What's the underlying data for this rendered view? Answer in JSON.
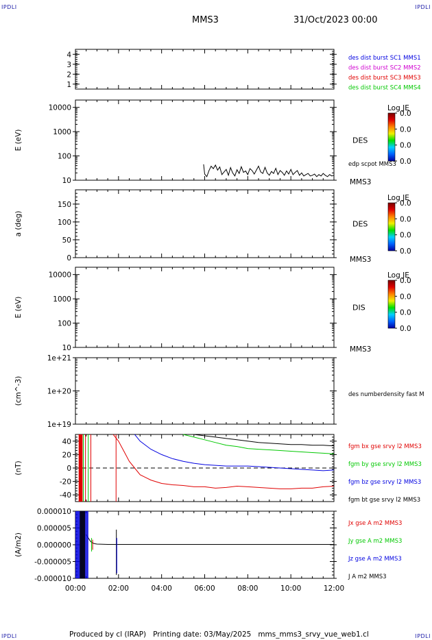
{
  "header": {
    "corner_label": "IPDLI",
    "spacecraft": "MMS3",
    "datetime": "31/Oct/2023 00:00"
  },
  "footer": {
    "producer": "Produced by cl (IRAP)",
    "printing": "Printing date: 03/May/2025",
    "product": "mms_mms3_srvy_vue_web1.cl"
  },
  "colors": {
    "black": "#000000",
    "red": "#e00000",
    "green": "#00c800",
    "blue": "#0000e0",
    "magenta": "#d000d0",
    "label_blue": "#1c1ca8"
  },
  "chart_data": [
    {
      "type": "line",
      "id": "burst",
      "ylim": [
        0.5,
        4.5
      ],
      "yticks": [
        {
          "v": 1,
          "label": "1"
        },
        {
          "v": 2,
          "label": "2"
        },
        {
          "v": 3,
          "label": "3"
        },
        {
          "v": 4,
          "label": "4"
        }
      ],
      "legend": [
        {
          "text": "des dist burst SC1 MMS1",
          "color": "#0000e0"
        },
        {
          "text": "des dist burst SC2 MMS2",
          "color": "#d000d0"
        },
        {
          "text": "des dist burst SC3 MMS3",
          "color": "#e00000"
        },
        {
          "text": "des dist burst SC4 MMS4",
          "color": "#00c800"
        }
      ],
      "series": []
    },
    {
      "type": "heatmap",
      "id": "des_energy",
      "ylabel": "E (eV)",
      "yscale": "log",
      "ylim": [
        10,
        20000
      ],
      "yticks": [
        {
          "v": 10,
          "label": "10"
        },
        {
          "v": 100,
          "label": "100"
        },
        {
          "v": 1000,
          "label": "1000"
        },
        {
          "v": 10000,
          "label": "10000"
        }
      ],
      "instrument": "DES",
      "spacecraft": "MMS3",
      "colorbar": {
        "title": "Log JE",
        "ticks": [
          "0.0",
          "0.0",
          "0.0",
          "0.0"
        ]
      },
      "legend": [
        {
          "text": "edp scpot MMS3",
          "color": "#000000"
        }
      ],
      "series": [
        {
          "name": "edp scpot MMS3",
          "color": "#000000",
          "x": [
            5.95,
            6.0,
            6.1,
            6.2,
            6.3,
            6.4,
            6.5,
            6.6,
            6.7,
            6.8,
            6.9,
            7.0,
            7.1,
            7.2,
            7.3,
            7.4,
            7.5,
            7.6,
            7.7,
            7.8,
            7.9,
            8.0,
            8.1,
            8.2,
            8.3,
            8.4,
            8.5,
            8.6,
            8.7,
            8.8,
            8.9,
            9.0,
            9.1,
            9.2,
            9.3,
            9.4,
            9.5,
            9.6,
            9.7,
            9.8,
            9.9,
            10.0,
            10.1,
            10.2,
            10.3,
            10.4,
            10.5,
            10.6,
            10.7,
            10.8,
            10.9,
            11.0,
            11.1,
            11.2,
            11.3,
            11.4,
            11.5,
            11.6,
            11.7,
            11.8,
            11.9,
            12.0
          ],
          "y": [
            45,
            18,
            14,
            25,
            38,
            30,
            42,
            26,
            35,
            17,
            22,
            28,
            16,
            33,
            20,
            15,
            27,
            19,
            36,
            21,
            24,
            17,
            30,
            25,
            18,
            26,
            38,
            22,
            19,
            34,
            20,
            16,
            23,
            19,
            31,
            17,
            25,
            21,
            16,
            24,
            18,
            28,
            17,
            21,
            25,
            16,
            20,
            15,
            17,
            19,
            15,
            16,
            18,
            14,
            17,
            15,
            19,
            16,
            14,
            17,
            15,
            16
          ]
        }
      ]
    },
    {
      "type": "heatmap",
      "id": "des_pitch",
      "ylabel": "a (deg)",
      "ylim": [
        0,
        190
      ],
      "yticks": [
        {
          "v": 0,
          "label": "0"
        },
        {
          "v": 50,
          "label": "50"
        },
        {
          "v": 100,
          "label": "100"
        },
        {
          "v": 150,
          "label": "150"
        }
      ],
      "instrument": "DES",
      "spacecraft": "MMS3",
      "colorbar": {
        "title": "Log JE",
        "ticks": [
          "0.0",
          "0.0",
          "0.0",
          "0.0"
        ]
      },
      "series": []
    },
    {
      "type": "heatmap",
      "id": "dis_energy",
      "ylabel": "E (eV)",
      "yscale": "log",
      "ylim": [
        10,
        20000
      ],
      "yticks": [
        {
          "v": 10,
          "label": "10"
        },
        {
          "v": 100,
          "label": "100"
        },
        {
          "v": 1000,
          "label": "1000"
        },
        {
          "v": 10000,
          "label": "10000"
        }
      ],
      "instrument": "DIS",
      "spacecraft": "MMS3",
      "colorbar": {
        "title": "Log JE",
        "ticks": [
          "0.0",
          "0.0",
          "0.0",
          "0.0"
        ]
      },
      "series": []
    },
    {
      "type": "line",
      "id": "density",
      "ylabel": "(cm^-3)",
      "yscale": "log",
      "ylim": [
        1e+19,
        1e+21
      ],
      "yticks": [
        {
          "v": 1e+19,
          "label": "1e+19"
        },
        {
          "v": 1e+20,
          "label": "1e+20"
        },
        {
          "v": 1e+21,
          "label": "1e+21"
        }
      ],
      "legend": [
        {
          "text": "des numberdensity fast M",
          "color": "#000000"
        }
      ],
      "series": []
    },
    {
      "type": "line",
      "id": "fgm",
      "ylabel": "(nT)",
      "ylim": [
        -50,
        50
      ],
      "yticks": [
        {
          "v": -40,
          "label": "-40"
        },
        {
          "v": -20,
          "label": "-20"
        },
        {
          "v": 0,
          "label": "0"
        },
        {
          "v": 20,
          "label": "20"
        },
        {
          "v": 40,
          "label": "40"
        }
      ],
      "zero_line": true,
      "legend": [
        {
          "text": "fgm bx gse srvy l2 MMS3",
          "color": "#e00000"
        },
        {
          "text": "fgm by gse srvy l2 MMS3",
          "color": "#00c800"
        },
        {
          "text": "fgm bz gse srvy l2 MMS3",
          "color": "#0000e0"
        },
        {
          "text": "fgm bt gse srvy l2 MMS3",
          "color": "#000000"
        }
      ],
      "series": [
        {
          "name": "fgm bx gse srvy l2 MMS3",
          "color": "#e00000",
          "x": [
            1.75,
            2.0,
            2.25,
            2.5,
            2.75,
            3.0,
            3.25,
            3.5,
            4.0,
            4.5,
            5.0,
            5.5,
            6.0,
            6.5,
            7.0,
            7.5,
            8.0,
            8.5,
            9.0,
            9.5,
            10.0,
            10.5,
            11.0,
            11.5,
            12.0
          ],
          "y": [
            55,
            40,
            25,
            10,
            0,
            -10,
            -14,
            -18,
            -23,
            -25,
            -26,
            -28,
            -28,
            -30,
            -29,
            -27,
            -28,
            -29,
            -30,
            -31,
            -31,
            -30,
            -30,
            -28,
            -27
          ]
        },
        {
          "name": "fgm by gse srvy l2 MMS3",
          "color": "#00c800",
          "x": [
            5.0,
            5.5,
            6.0,
            6.5,
            7.0,
            7.5,
            8.0,
            8.5,
            9.0,
            9.5,
            10.0,
            10.5,
            11.0,
            11.5,
            12.0
          ],
          "y": [
            50,
            46,
            42,
            38,
            34,
            32,
            29,
            28,
            27,
            26,
            25,
            24,
            23,
            22,
            21
          ]
        },
        {
          "name": "fgm bz gse srvy l2 MMS3",
          "color": "#0000e0",
          "x": [
            2.75,
            3.0,
            3.5,
            4.0,
            4.5,
            5.0,
            5.5,
            6.0,
            6.5,
            7.0,
            7.5,
            8.0,
            8.5,
            9.0,
            9.5,
            10.0,
            10.5,
            11.0,
            11.5,
            12.0
          ],
          "y": [
            50,
            40,
            28,
            20,
            14,
            10,
            7,
            5,
            4,
            3,
            3,
            3,
            2,
            1,
            0,
            -1,
            -2,
            -3,
            -4,
            -3
          ]
        },
        {
          "name": "fgm bt gse srvy l2 MMS3",
          "color": "#000000",
          "x": [
            5.5,
            6.0,
            6.5,
            7.0,
            7.5,
            8.0,
            8.5,
            9.0,
            9.5,
            10.0,
            10.5,
            11.0,
            11.5,
            12.0
          ],
          "y": [
            50,
            48,
            46,
            44,
            42,
            40,
            38,
            37,
            36,
            35,
            35,
            34,
            34,
            33
          ]
        }
      ]
    },
    {
      "type": "line",
      "id": "current",
      "ylabel": "(A/m2)",
      "ylim": [
        -1e-05,
        1e-05
      ],
      "yticks": [
        {
          "v": -1e-05,
          "label": "-0.000010"
        },
        {
          "v": -5e-06,
          "label": "-0.000005"
        },
        {
          "v": 0,
          "label": "0.000000"
        },
        {
          "v": 5e-06,
          "label": "0.000005"
        },
        {
          "v": 1e-05,
          "label": "0.000010"
        }
      ],
      "legend": [
        {
          "text": "Jx gse A m2 MMS3",
          "color": "#e00000"
        },
        {
          "text": "Jy gse A m2 MMS3",
          "color": "#00c800"
        },
        {
          "text": "Jz gse A m2 MMS3",
          "color": "#0000e0"
        },
        {
          "text": "J A m2 MMS3",
          "color": "#000000"
        }
      ],
      "xlabel": "",
      "xlim": [
        0,
        12
      ],
      "xticks": [
        {
          "v": 0,
          "label": "00:00"
        },
        {
          "v": 2,
          "label": "02:00"
        },
        {
          "v": 4,
          "label": "04:00"
        },
        {
          "v": 6,
          "label": "06:00"
        },
        {
          "v": 8,
          "label": "08:00"
        },
        {
          "v": 10,
          "label": "10:00"
        },
        {
          "v": 12,
          "label": "12:00"
        }
      ],
      "series": [
        {
          "name": "J A m2 MMS3",
          "color": "#000000",
          "x": [
            0.5,
            0.6,
            0.7,
            0.8,
            0.9,
            1.0,
            1.5,
            2.0,
            3.0,
            4.0,
            6.0,
            8.0,
            10.0,
            12.0
          ],
          "y": [
            3e-06,
            2e-06,
            1e-06,
            5e-07,
            3e-07,
            2e-07,
            1e-07,
            1e-07,
            1e-07,
            1e-07,
            1e-07,
            1e-07,
            1e-07,
            1e-07
          ]
        }
      ]
    }
  ]
}
